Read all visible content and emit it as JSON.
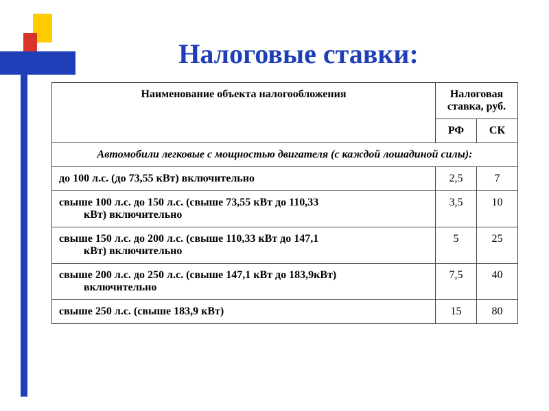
{
  "title": {
    "text": "Налоговые ставки:",
    "color": "#1f3fb8"
  },
  "decor": {
    "yellow": "#ffcc00",
    "red": "#d8342a",
    "blue": "#1f3fb8"
  },
  "table": {
    "header": {
      "name_col": "Наименование объекта налогообложения",
      "rate_col": "Налоговая ставка, руб.",
      "sub_rf": "РФ",
      "sub_sk": "СК"
    },
    "category": "Автомобили легковые с мощностью двигателя (с каждой лошадиной силы):",
    "rows": [
      {
        "label": "до 100 л.с. (до 73,55 кВт) включительно",
        "label2": "",
        "rf": "2,5",
        "sk": "7"
      },
      {
        "label": "свыше 100 л.с. до 150 л.с. (свыше 73,55 кВт до 110,33",
        "label2": "кВт) включительно",
        "rf": "3,5",
        "sk": "10"
      },
      {
        "label": "свыше 150 л.с. до 200 л.с. (свыше 110,33 кВт до 147,1",
        "label2": "кВт) включительно",
        "rf": "5",
        "sk": "25"
      },
      {
        "label": "свыше 200 л.с. до 250 л.с. (свыше 147,1 кВт до 183,9кВт)",
        "label2": "включительно",
        "rf": "7,5",
        "sk": "40"
      },
      {
        "label": "свыше 250 л.с. (свыше 183,9 кВт)",
        "label2": "",
        "rf": "15",
        "sk": "80"
      }
    ]
  }
}
